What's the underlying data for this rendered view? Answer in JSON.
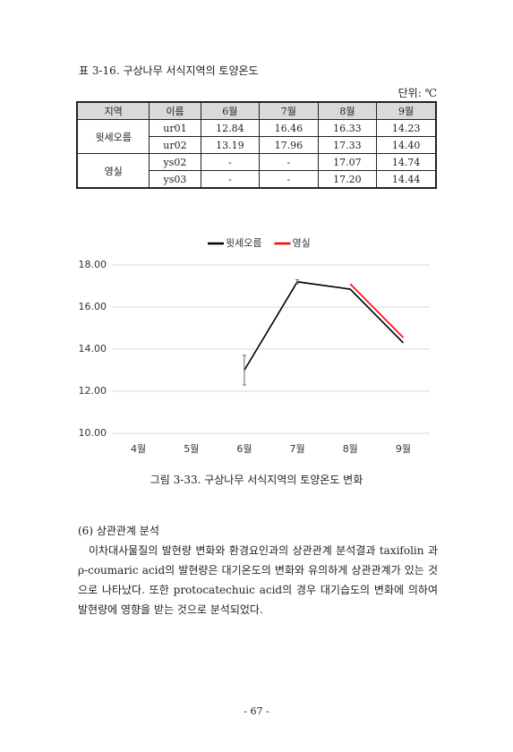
{
  "table_caption": "표 3-16. 구상나무 서식지역의 토양온도",
  "unit": "단위: ℃",
  "table": {
    "header": [
      "지역",
      "이름",
      "6월",
      "7월",
      "8월",
      "9월"
    ],
    "groups": [
      {
        "region": "윗세오름",
        "rows": [
          [
            "ur01",
            "12.84",
            "16.46",
            "16.33",
            "14.23"
          ],
          [
            "ur02",
            "13.19",
            "17.96",
            "17.33",
            "14.40"
          ]
        ]
      },
      {
        "region": "영실",
        "rows": [
          [
            "ys02",
            "-",
            "-",
            "17.07",
            "14.74"
          ],
          [
            "ys03",
            "-",
            "-",
            "17.20",
            "14.44"
          ]
        ]
      }
    ]
  },
  "chart_data": {
    "type": "line",
    "categories": [
      "4월",
      "5월",
      "6월",
      "7월",
      "8월",
      "9월"
    ],
    "series": [
      {
        "name": "윗세오름",
        "color": "#000000",
        "values": [
          null,
          null,
          13.0,
          17.2,
          16.85,
          14.3
        ],
        "errors": [
          null,
          null,
          0.7,
          0.1,
          null,
          null
        ]
      },
      {
        "name": "영실",
        "color": "#ff0000",
        "values": [
          null,
          null,
          null,
          null,
          17.1,
          14.55
        ]
      }
    ],
    "ylim": [
      10,
      18
    ],
    "yticks": [
      {
        "value": 10,
        "label": "10.00"
      },
      {
        "value": 12,
        "label": "12.00"
      },
      {
        "value": 14,
        "label": "14.00"
      },
      {
        "value": 16,
        "label": "16.00"
      },
      {
        "value": 18,
        "label": "18.00"
      }
    ],
    "grid": true,
    "legend": "top"
  },
  "figure_caption": "그림 3-33. 구상나무 서식지역의 토양온도 변화",
  "section_title": "(6) 상관관계 분석",
  "paragraph": "이차대사물질의 발현량 변화와 환경요인과의 상관관계 분석결과 taxifolin 과 ρ-coumaric acid의 발현량은 대기온도의 변화와 유의하게 상관관계가 있는 것으로 나타났다. 또한 protocatechuic acid의 경우 대기습도의 변화에 의하여 발현량에 영향을 받는 것으로 분석되었다.",
  "page_number": "- 67 -"
}
